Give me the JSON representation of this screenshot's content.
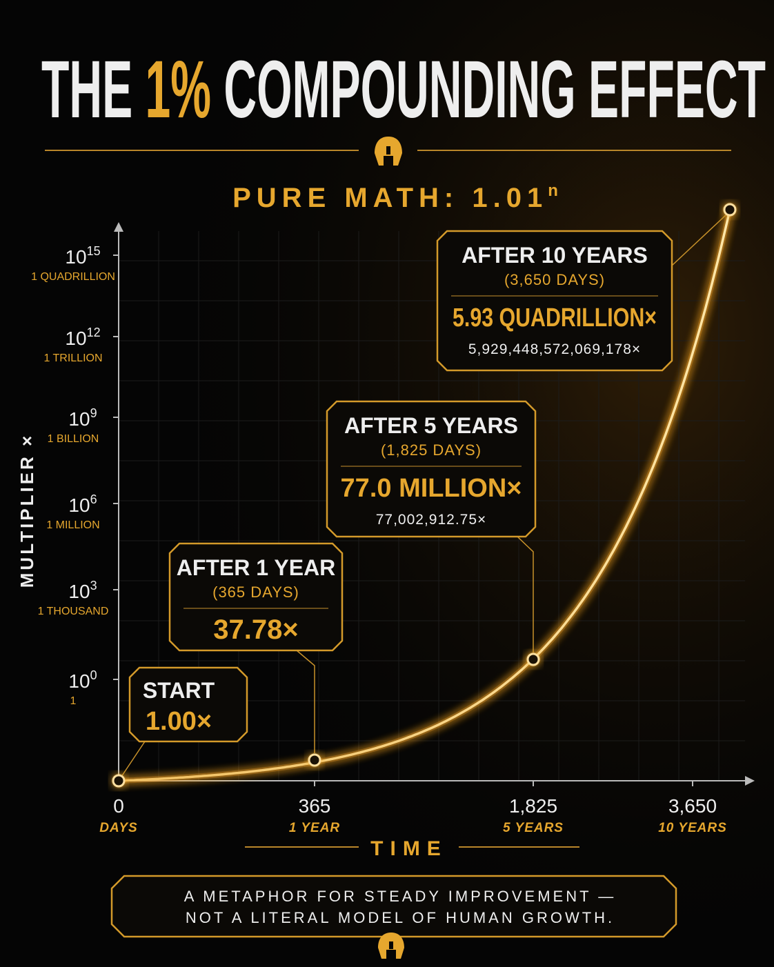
{
  "title": {
    "before": "THE",
    "highlight": "1%",
    "after": "COMPOUNDING EFFECT"
  },
  "subtitle": {
    "text": "PURE MATH: 1.01",
    "superscript": "n"
  },
  "y_axis": {
    "title": "MULTIPLIER ×",
    "ticks": [
      {
        "base": "10",
        "exponent": "15",
        "label": "1 QUADRILLION"
      },
      {
        "base": "10",
        "exponent": "12",
        "label": "1 TRILLION"
      },
      {
        "base": "10",
        "exponent": "9",
        "label": "1 BILLION"
      },
      {
        "base": "10",
        "exponent": "6",
        "label": "1 MILLION"
      },
      {
        "base": "10",
        "exponent": "3",
        "label": "1 THOUSAND"
      },
      {
        "base": "10",
        "exponent": "0",
        "label": "1"
      }
    ]
  },
  "x_axis": {
    "title": "TIME",
    "ticks": [
      {
        "value": "0",
        "label": "DAYS"
      },
      {
        "value": "365",
        "label": "1 YEAR"
      },
      {
        "value": "1,825",
        "label": "5 YEARS"
      },
      {
        "value": "3,650",
        "label": "10 YEARS"
      }
    ]
  },
  "callouts": [
    {
      "heading": "START",
      "value": "1.00×"
    },
    {
      "heading": "AFTER 1 YEAR",
      "days": "(365 DAYS)",
      "value": "37.78×"
    },
    {
      "heading": "AFTER 5 YEARS",
      "days": "(1,825 DAYS)",
      "value": "77.0 MILLION×",
      "exact": "77,002,912.75×"
    },
    {
      "heading": "AFTER 10 YEARS",
      "days": "(3,650 DAYS)",
      "value": "5.93 QUADRILLION×",
      "exact": "5,929,448,572,069,178×"
    }
  ],
  "note": {
    "lines": [
      "A METAPHOR FOR STEADY IMPROVEMENT —",
      "NOT A LITERAL MODEL OF HUMAN GROWTH."
    ]
  }
}
